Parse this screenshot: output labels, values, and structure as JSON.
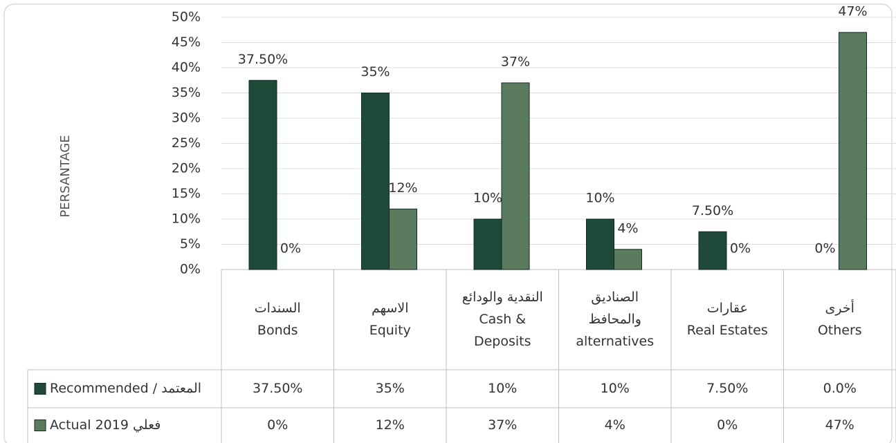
{
  "chart_data": {
    "type": "bar",
    "y_label": "PERSANTAGE",
    "categories": [
      [
        "السندات",
        "Bonds"
      ],
      [
        "الاسهم",
        "Equity"
      ],
      [
        "النقدية والودائع",
        "Cash &",
        "Deposits"
      ],
      [
        "الصناديق",
        "والمحافظ",
        "alternatives"
      ],
      [
        "عقارات",
        "Real Estates"
      ],
      [
        "أخرى",
        "Others"
      ]
    ],
    "series": [
      {
        "name": "Recommended / المعتمد",
        "color": "#1f4a3a",
        "values": [
          37.5,
          35,
          10,
          10,
          7.5,
          0
        ],
        "value_labels": [
          "37.50%",
          "35%",
          "10%",
          "10%",
          "7.50%",
          "0%"
        ],
        "table_labels": [
          "37.50%",
          "35%",
          "10%",
          "10%",
          "7.50%",
          "0.0%"
        ]
      },
      {
        "name": "Actual 2019 فعلي",
        "color": "#5b7b5f",
        "values": [
          0,
          12,
          37,
          4,
          0,
          47
        ],
        "value_labels": [
          "0%",
          "12%",
          "37%",
          "4%",
          "0%",
          "47%"
        ],
        "table_labels": [
          "0%",
          "12%",
          "37%",
          "4%",
          "0%",
          "47%"
        ]
      }
    ],
    "ylim": [
      0,
      50
    ],
    "yticks": [
      {
        "value": 0,
        "label": "0%"
      },
      {
        "value": 5,
        "label": "5%"
      },
      {
        "value": 10,
        "label": "10%"
      },
      {
        "value": 15,
        "label": "15%"
      },
      {
        "value": 20,
        "label": "20%"
      },
      {
        "value": 25,
        "label": "25%"
      },
      {
        "value": 30,
        "label": "30%"
      },
      {
        "value": 35,
        "label": "35%"
      },
      {
        "value": 40,
        "label": "40%"
      },
      {
        "value": 45,
        "label": "45%"
      },
      {
        "value": 50,
        "label": "50%"
      }
    ],
    "grid": true
  }
}
